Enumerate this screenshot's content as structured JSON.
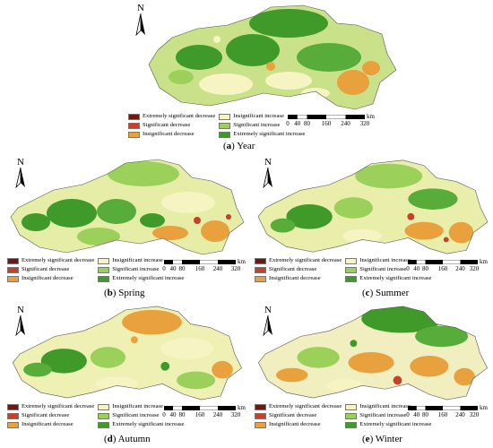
{
  "north_label": "N",
  "scale": {
    "ticks": [
      "0",
      "40",
      "80",
      "160",
      "240",
      "320"
    ],
    "unit": "km"
  },
  "legend": [
    {
      "label": "Extremely significant decrease",
      "color": "#6b1a12"
    },
    {
      "label": "Insignificant increase",
      "color": "#f7f4c4"
    },
    {
      "label": "Significant decrease",
      "color": "#c6402c"
    },
    {
      "label": "Significant increase",
      "color": "#9bd15b"
    },
    {
      "label": "Insignificant decrease",
      "color": "#e8a13c"
    },
    {
      "label": "Extremely significant increase",
      "color": "#3f9a2a"
    }
  ],
  "panels": [
    {
      "id": "year",
      "caption_letter": "a",
      "caption_text": "Year"
    },
    {
      "id": "spring",
      "caption_letter": "b",
      "caption_text": "Spring"
    },
    {
      "id": "summer",
      "caption_letter": "c",
      "caption_text": "Summer"
    },
    {
      "id": "autumn",
      "caption_letter": "d",
      "caption_text": "Autumn"
    },
    {
      "id": "winter",
      "caption_letter": "e",
      "caption_text": "Winter"
    }
  ]
}
